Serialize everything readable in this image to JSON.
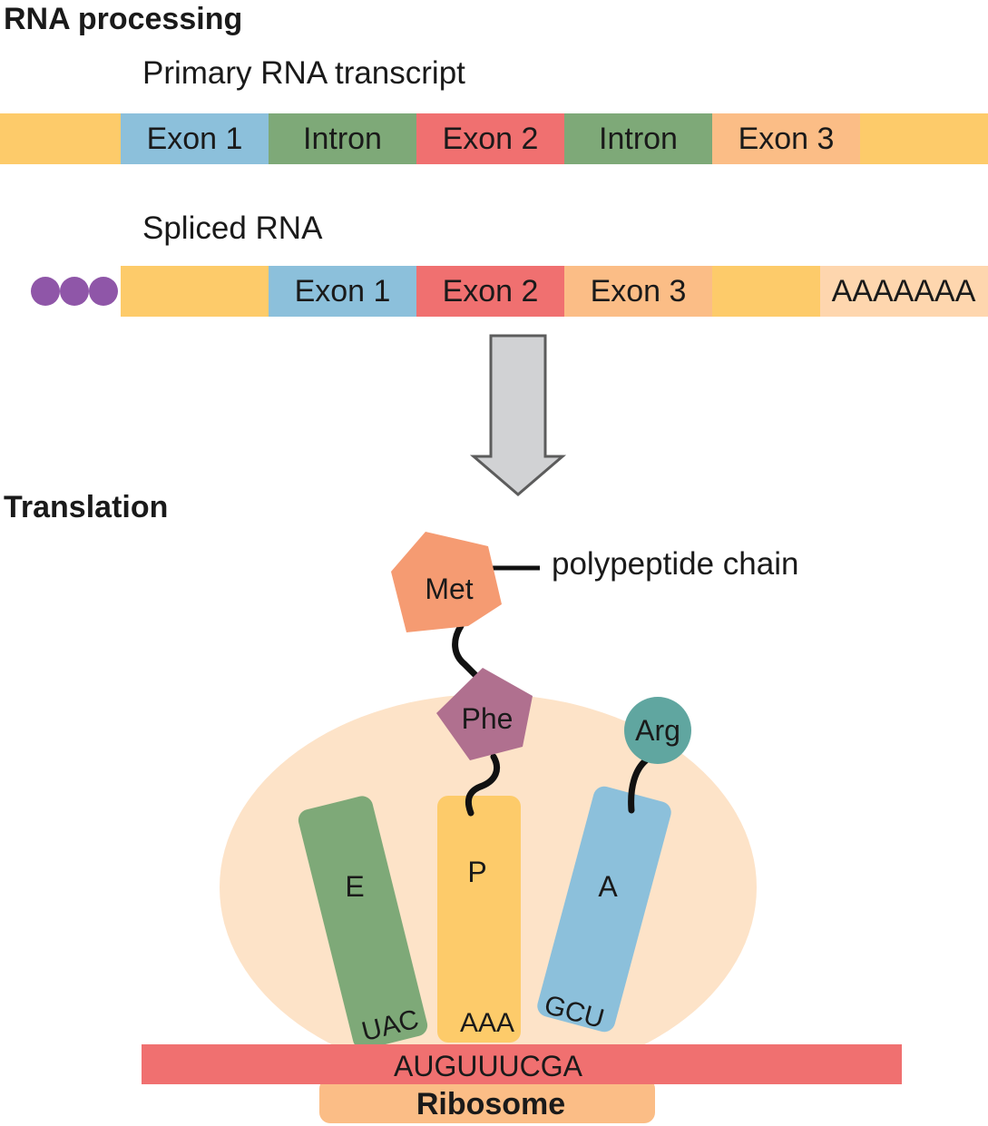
{
  "headings": {
    "rna_processing": "RNA processing",
    "translation": "Translation"
  },
  "primary": {
    "label": "Primary RNA transcript",
    "segments": [
      "",
      "Exon 1",
      "Intron",
      "Exon 2",
      "Intron",
      "Exon 3",
      ""
    ]
  },
  "spliced": {
    "label": "Spliced RNA",
    "segments": [
      "",
      "Exon 1",
      "Exon 2",
      "Exon 3",
      "",
      "AAAAAAA"
    ]
  },
  "translation": {
    "met": "Met",
    "phe": "Phe",
    "arg": "Arg",
    "polypeptide_label": "polypeptide chain",
    "site_e": "E",
    "site_p": "P",
    "site_a": "A",
    "anticodon_e": "UAC",
    "anticodon_p": "AAA",
    "anticodon_a": "GCU",
    "mrna": "AUGUUUCGA",
    "ribosome": "Ribosome"
  },
  "colors": {
    "utr": "#FDCB6A",
    "exon1": "#8CC0DB",
    "intron": "#7EA978",
    "exon2": "#F07070",
    "exon3": "#FBBD86",
    "polya": "#FED6AE",
    "cap": "#8F56A8",
    "ribosome_body": "#FDE3C8",
    "met": "#F59B72",
    "phe": "#B0708F",
    "arg": "#60A6A0"
  }
}
